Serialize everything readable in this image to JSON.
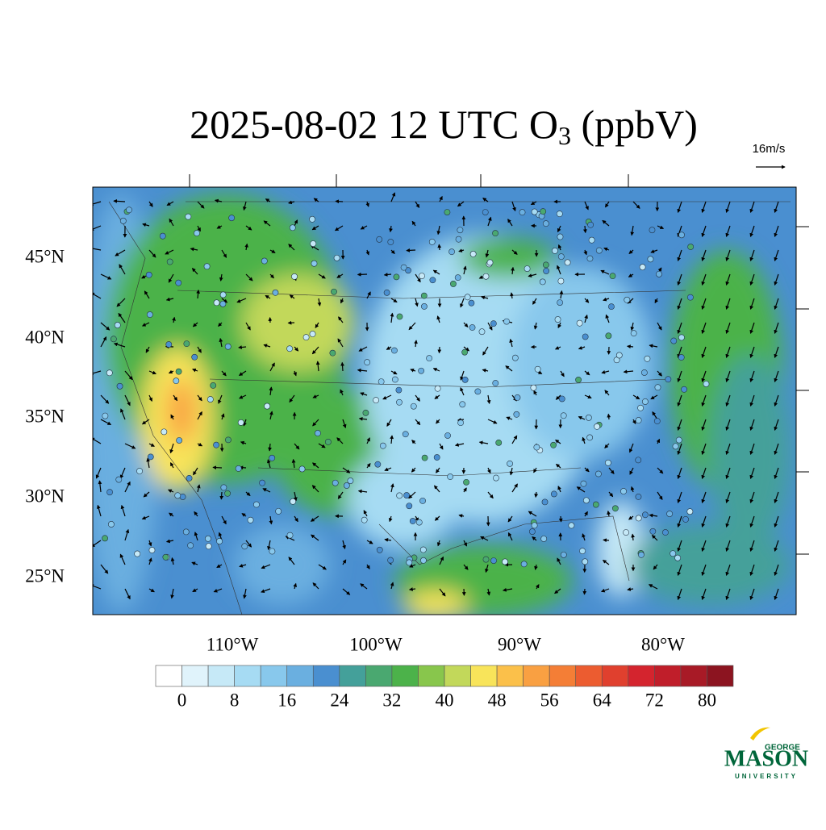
{
  "map": {
    "title": {
      "main": "2025-08-02 12 UTC O",
      "subscript": "3",
      "suffix": " (ppbV)"
    },
    "vector_reference": "16m/s",
    "lat_labels": [
      "45°N",
      "40°N",
      "35°N",
      "30°N",
      "25°N"
    ],
    "lon_labels": [
      "110°W",
      "100°W",
      "90°W",
      "80°W"
    ]
  },
  "colorbar": {
    "lim": [
      -4,
      84
    ],
    "colors": [
      "#ffffff",
      "#e0f3fb",
      "#c6e9f7",
      "#a6dbf3",
      "#88c8ec",
      "#6aafe0",
      "#4a8fd0",
      "#44a09a",
      "#4aa870",
      "#4cb24a",
      "#88c64c",
      "#c2d85a",
      "#f8e45a",
      "#fbc04a",
      "#f9a042",
      "#f47e36",
      "#ec5c30",
      "#e0402e",
      "#d4242e",
      "#c01e2a",
      "#a81a26",
      "#8c1420"
    ],
    "ticks": [
      0,
      8,
      16,
      24,
      32,
      40,
      48,
      56,
      64,
      72,
      80
    ]
  },
  "logo": {
    "top": "GEORGE",
    "main": "MASON",
    "bottom": "UNIVERSITY"
  }
}
